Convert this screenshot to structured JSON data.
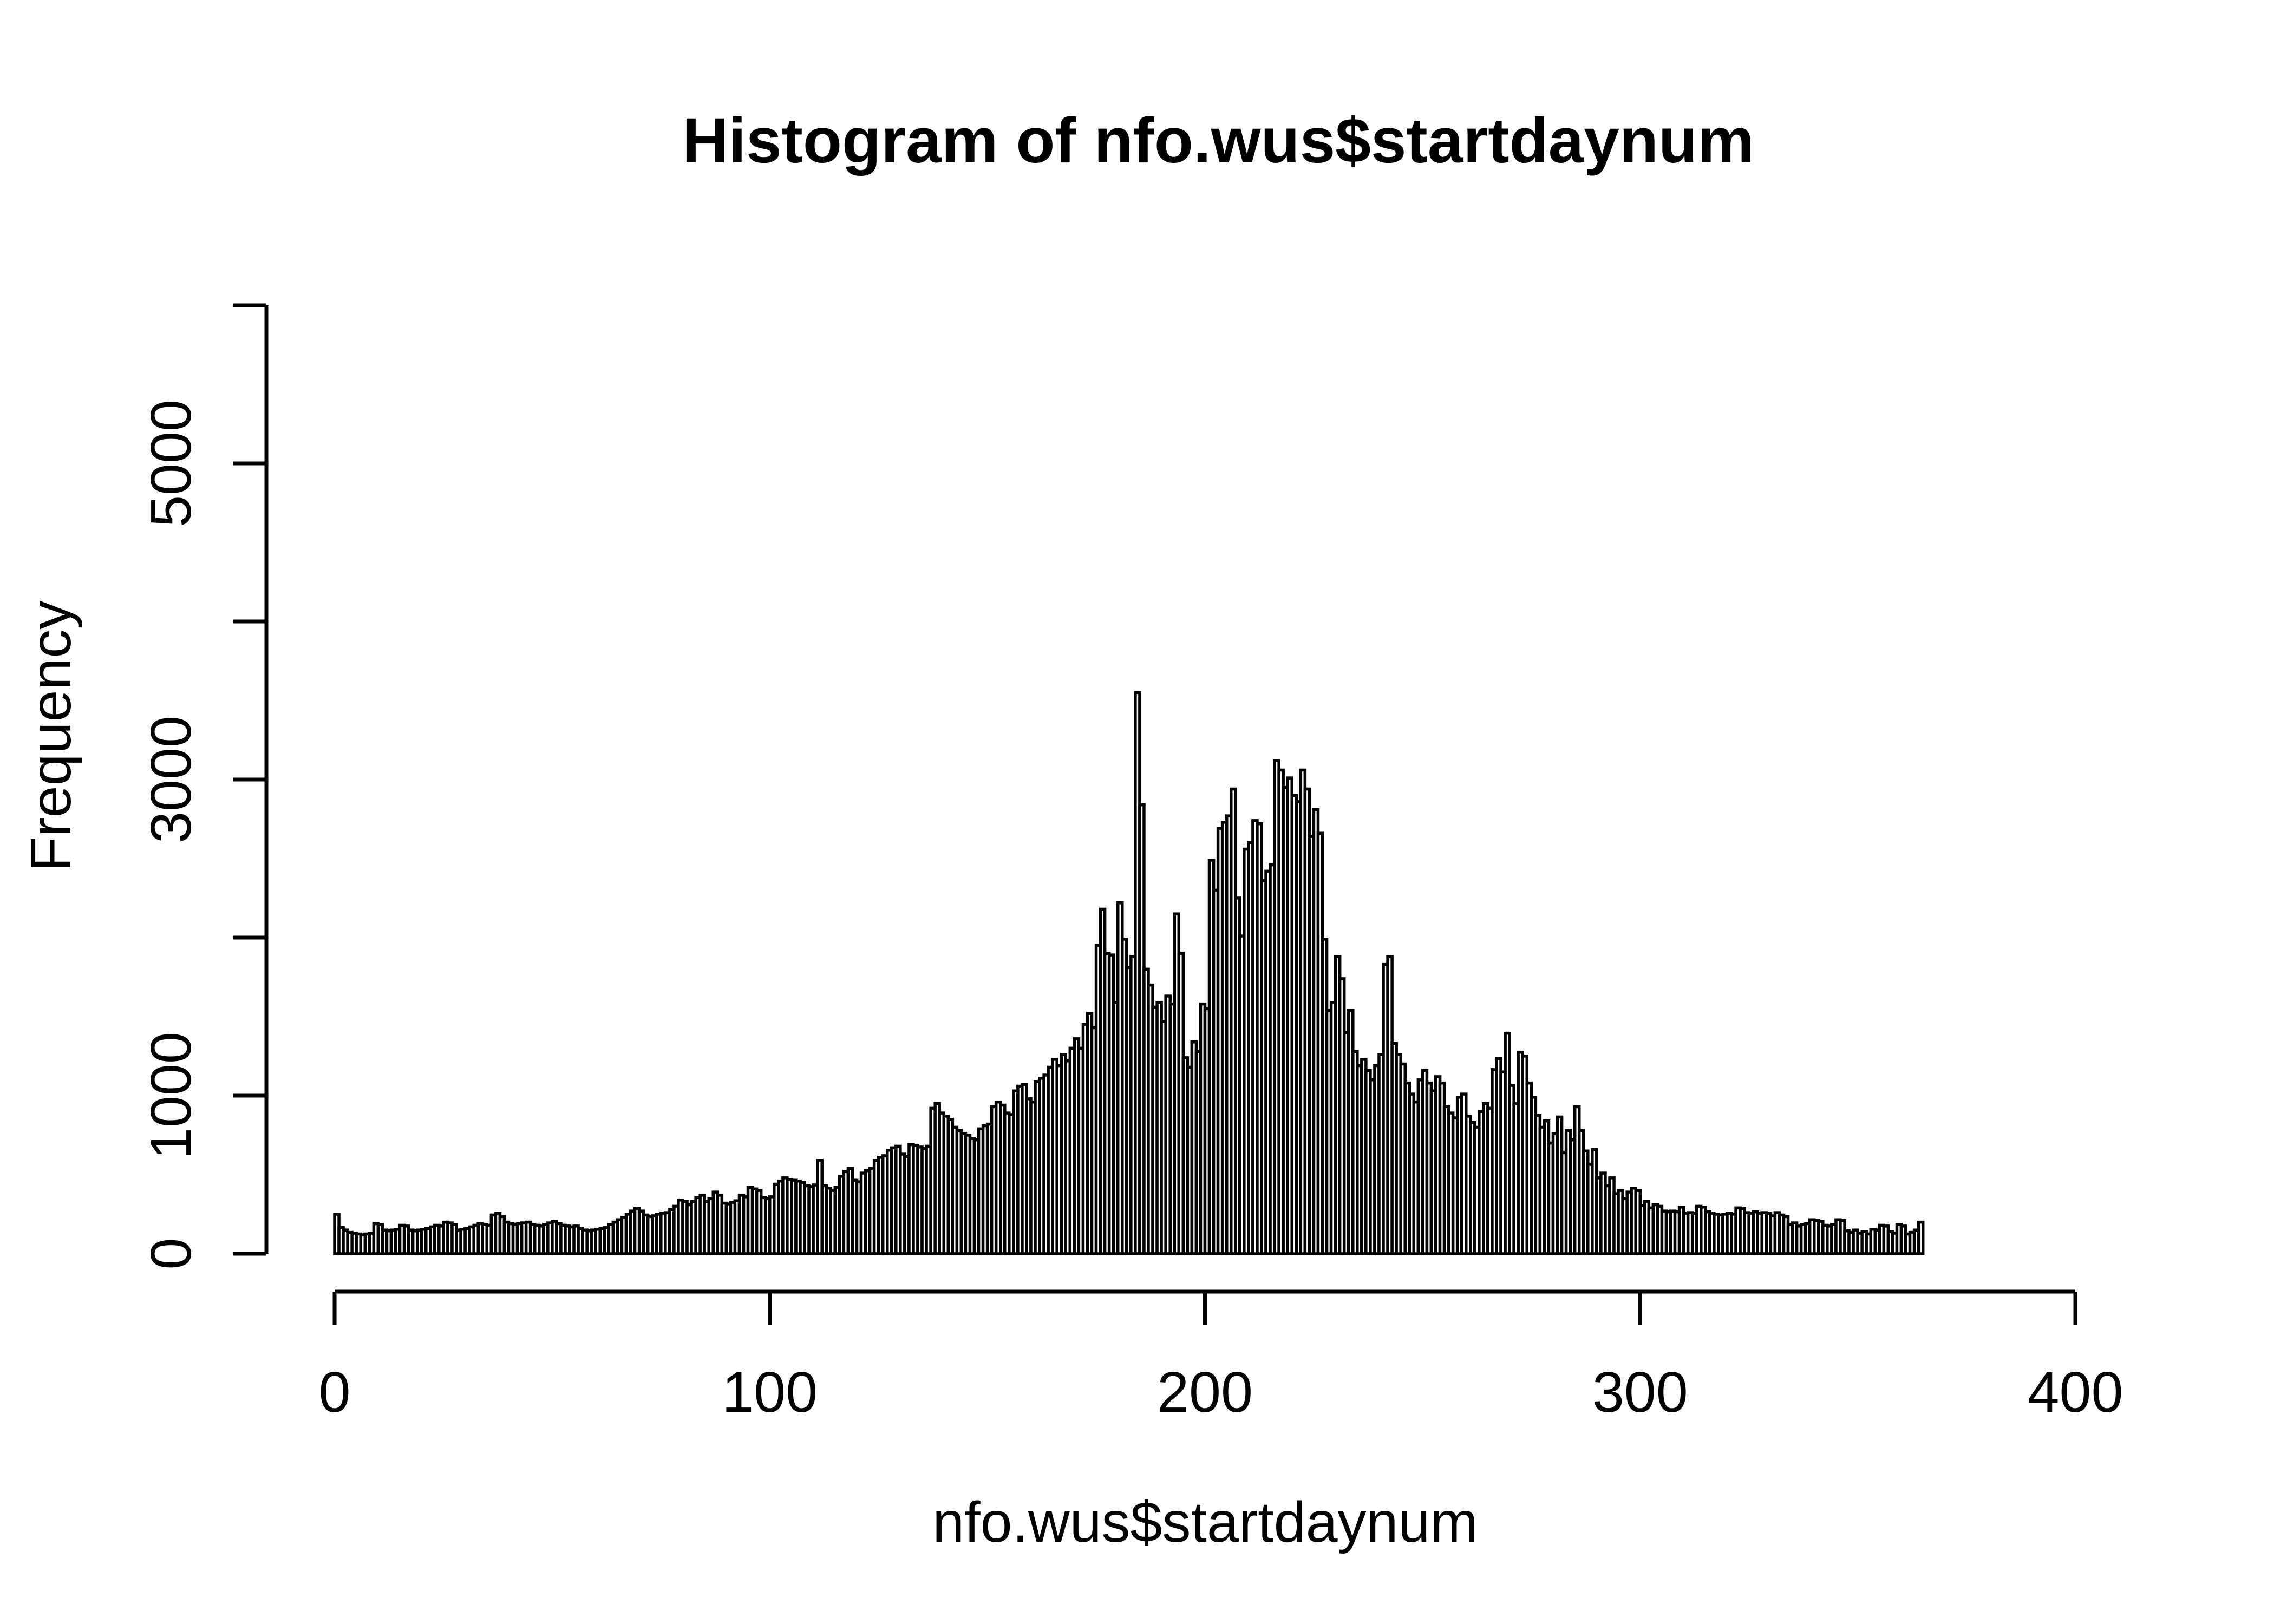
{
  "colors": {
    "background": "#ffffff",
    "foreground": "#000000",
    "bar_fill": "#ffffff",
    "bar_stroke": "#000000"
  },
  "chart_data": {
    "type": "bar",
    "subtype": "histogram",
    "title": "Histogram of nfo.wus$startdaynum",
    "xlabel": "nfo.wus$startdaynum",
    "ylabel": "Frequency",
    "xlim": [
      0,
      400
    ],
    "ylim": [
      0,
      6000
    ],
    "grid": "off",
    "legend": "none",
    "bin_start": 0,
    "bin_width": 1,
    "x_ticks": [
      0,
      100,
      200,
      300,
      400
    ],
    "x_tick_labels": [
      "0",
      "100",
      "200",
      "300",
      "400"
    ],
    "y_ticks": [
      0,
      1000,
      2000,
      3000,
      4000,
      5000,
      6000
    ],
    "y_tick_labels": [
      "0",
      "1000",
      "",
      "3000",
      "",
      "5000",
      ""
    ],
    "values": [
      250,
      165,
      150,
      135,
      130,
      125,
      120,
      125,
      130,
      190,
      185,
      150,
      145,
      150,
      155,
      180,
      175,
      150,
      145,
      150,
      155,
      160,
      170,
      180,
      175,
      200,
      195,
      185,
      150,
      155,
      160,
      170,
      180,
      190,
      185,
      180,
      245,
      255,
      235,
      200,
      190,
      185,
      190,
      195,
      200,
      185,
      180,
      175,
      185,
      195,
      205,
      190,
      180,
      175,
      170,
      175,
      160,
      150,
      145,
      150,
      155,
      160,
      165,
      185,
      200,
      215,
      230,
      250,
      270,
      285,
      270,
      245,
      235,
      240,
      250,
      255,
      260,
      280,
      300,
      340,
      330,
      310,
      330,
      355,
      370,
      330,
      350,
      390,
      370,
      320,
      315,
      325,
      335,
      370,
      360,
      420,
      410,
      400,
      355,
      350,
      360,
      440,
      460,
      480,
      470,
      465,
      460,
      450,
      430,
      425,
      435,
      590,
      430,
      415,
      400,
      420,
      490,
      520,
      540,
      465,
      455,
      510,
      525,
      540,
      590,
      610,
      620,
      655,
      670,
      680,
      630,
      615,
      690,
      685,
      675,
      665,
      680,
      920,
      950,
      890,
      870,
      850,
      800,
      780,
      760,
      750,
      730,
      720,
      790,
      810,
      820,
      930,
      960,
      940,
      890,
      880,
      1030,
      1060,
      1070,
      980,
      960,
      1090,
      1110,
      1130,
      1180,
      1230,
      1190,
      1260,
      1220,
      1300,
      1360,
      1300,
      1450,
      1520,
      1430,
      1950,
      2180,
      1900,
      1890,
      1590,
      2220,
      1990,
      1810,
      1880,
      3550,
      2840,
      1800,
      1700,
      1560,
      1590,
      1470,
      1630,
      1580,
      2150,
      1900,
      1240,
      1180,
      1340,
      1280,
      1580,
      1550,
      2490,
      2300,
      2690,
      2730,
      2770,
      2940,
      2250,
      2010,
      2560,
      2600,
      2740,
      2720,
      2360,
      2420,
      2460,
      3120,
      3060,
      2950,
      3010,
      2900,
      2860,
      3060,
      2940,
      2640,
      2810,
      2660,
      1990,
      1540,
      1590,
      1880,
      1740,
      1400,
      1540,
      1280,
      1190,
      1230,
      1160,
      1100,
      1190,
      1260,
      1830,
      1880,
      1330,
      1260,
      1200,
      1080,
      1010,
      960,
      1100,
      1160,
      1080,
      1030,
      1120,
      1080,
      930,
      890,
      860,
      990,
      1010,
      870,
      830,
      800,
      900,
      950,
      920,
      1165,
      1235,
      1150,
      1395,
      1065,
      950,
      1275,
      1250,
      1080,
      990,
      875,
      800,
      840,
      700,
      760,
      865,
      640,
      780,
      720,
      930,
      780,
      650,
      565,
      660,
      480,
      510,
      430,
      480,
      380,
      400,
      350,
      390,
      415,
      400,
      305,
      330,
      290,
      310,
      300,
      270,
      265,
      270,
      265,
      295,
      255,
      260,
      255,
      300,
      295,
      265,
      255,
      250,
      245,
      250,
      255,
      250,
      290,
      285,
      260,
      255,
      265,
      255,
      260,
      255,
      240,
      260,
      245,
      235,
      185,
      195,
      175,
      185,
      190,
      215,
      210,
      205,
      180,
      175,
      185,
      215,
      210,
      145,
      135,
      150,
      130,
      140,
      125,
      155,
      150,
      180,
      175,
      140,
      130,
      185,
      175,
      125,
      135,
      150,
      200
    ]
  }
}
